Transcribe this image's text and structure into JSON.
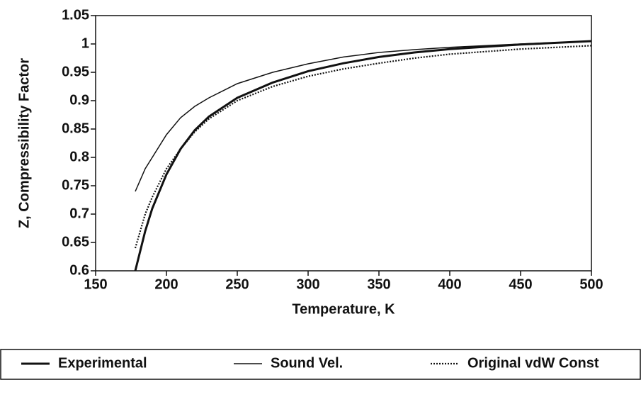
{
  "chart_data": {
    "type": "line",
    "xlabel": "Temperature, K",
    "ylabel": "Z, Compressibility Factor",
    "x": [
      178,
      185,
      190,
      200,
      210,
      220,
      230,
      250,
      275,
      300,
      325,
      350,
      375,
      400,
      450,
      500
    ],
    "series": [
      {
        "name": "Experimental",
        "color": "#111111",
        "line_style": "thick",
        "values": [
          0.6,
          0.67,
          0.71,
          0.77,
          0.815,
          0.848,
          0.872,
          0.905,
          0.932,
          0.952,
          0.966,
          0.977,
          0.985,
          0.991,
          0.999,
          1.005
        ]
      },
      {
        "name": "Sound Vel.",
        "color": "#111111",
        "line_style": "thin",
        "values": [
          0.74,
          0.78,
          0.8,
          0.84,
          0.87,
          0.89,
          0.905,
          0.93,
          0.95,
          0.965,
          0.977,
          0.985,
          0.99,
          0.994,
          1.0,
          1.005
        ]
      },
      {
        "name": "Original vdW Const",
        "color": "#111111",
        "line_style": "dotted",
        "values": [
          0.64,
          0.7,
          0.73,
          0.78,
          0.815,
          0.845,
          0.868,
          0.9,
          0.925,
          0.943,
          0.956,
          0.966,
          0.975,
          0.982,
          0.991,
          0.997
        ]
      }
    ],
    "xlim": [
      150,
      500
    ],
    "xticks": [
      150,
      200,
      250,
      300,
      350,
      400,
      450,
      500
    ],
    "ylim": [
      0.6,
      1.05
    ],
    "yticks": [
      0.6,
      0.65,
      0.7,
      0.75,
      0.8,
      0.85,
      0.9,
      0.95,
      1,
      1.05
    ],
    "legend": "bottom"
  }
}
